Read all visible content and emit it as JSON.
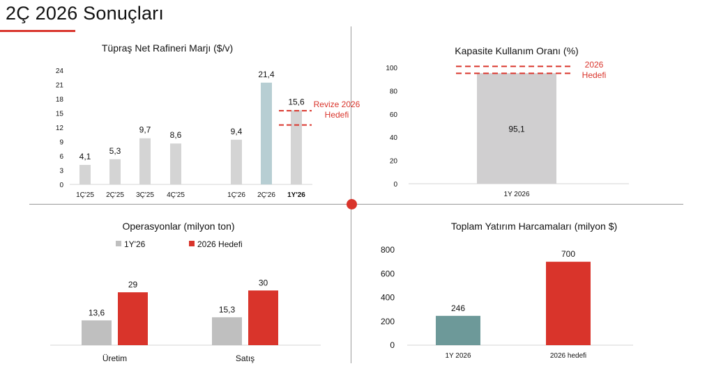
{
  "page": {
    "title": "2Ç 2026 Sonuçları"
  },
  "colors": {
    "accent": "#d9342b",
    "gray_bar": "#d4d4d4",
    "highlight_bar": "#b7ced3",
    "capacity_bar": "#d0cfd0",
    "ops_gray": "#bfbfbf",
    "ops_red": "#d9342b",
    "capex_teal": "#6d9999",
    "capex_red": "#d9342b"
  },
  "chart_data": [
    {
      "id": "refinery-margin",
      "type": "bar",
      "title": "Tüpraş Net Rafineri Marjı ($/v)",
      "categories": [
        "1Ç'25",
        "2Ç'25",
        "3Ç'25",
        "4Ç'25",
        "1Ç'26",
        "2Ç'26",
        "1Y'26"
      ],
      "values": [
        4.1,
        5.3,
        9.7,
        8.6,
        9.4,
        21.4,
        15.6
      ],
      "value_labels": [
        "4,1",
        "5,3",
        "9,7",
        "8,6",
        "9,4",
        "21,4",
        "15,6"
      ],
      "highlight_index": 5,
      "bold_category_index": 6,
      "ylim": [
        0,
        24
      ],
      "yticks": [
        0,
        3,
        6,
        9,
        12,
        15,
        18,
        21,
        24
      ],
      "target_band": {
        "low": 12.5,
        "high": 15.5,
        "label_line1": "Revize 2026",
        "label_line2": "Hedefi"
      }
    },
    {
      "id": "capacity-utilization",
      "type": "bar",
      "title": "Kapasite Kullanım Oranı (%)",
      "categories": [
        "1Y 2026"
      ],
      "values": [
        95.1
      ],
      "value_labels": [
        "95,1"
      ],
      "ylim": [
        0,
        100
      ],
      "yticks": [
        0,
        20,
        40,
        60,
        80,
        100
      ],
      "target_band": {
        "low": 95,
        "high": 101,
        "label_line1": "2026",
        "label_line2": "Hedefi"
      }
    },
    {
      "id": "operations",
      "type": "bar",
      "title": "Operasyonlar (milyon ton)",
      "categories": [
        "Üretim",
        "Satış"
      ],
      "series": [
        {
          "name": "1Y'26",
          "values": [
            13.6,
            15.3
          ],
          "value_labels": [
            "13,6",
            "15,3"
          ]
        },
        {
          "name": "2026 Hedefi",
          "values": [
            29,
            30
          ],
          "value_labels": [
            "29",
            "30"
          ]
        }
      ],
      "ylim": [
        0,
        40
      ],
      "legend": "top-left"
    },
    {
      "id": "capex",
      "type": "bar",
      "title": "Toplam Yatırım Harcamaları (milyon $)",
      "categories": [
        "1Y 2026",
        "2026 hedefi"
      ],
      "values": [
        246,
        700
      ],
      "value_labels": [
        "246",
        "700"
      ],
      "ylim": [
        0,
        800
      ],
      "yticks": [
        0,
        200,
        400,
        600,
        800
      ]
    }
  ]
}
